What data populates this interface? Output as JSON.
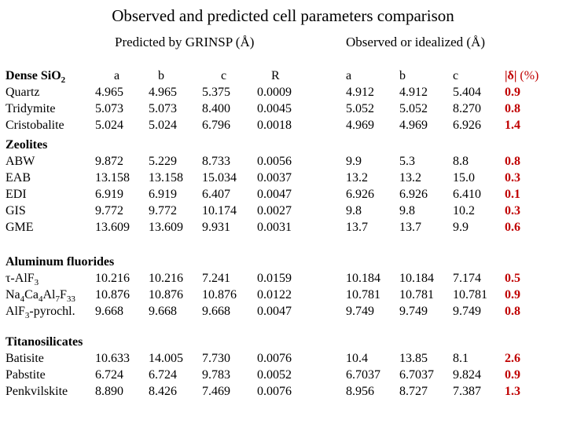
{
  "title": "Observed and predicted cell parameters comparison",
  "header_predicted": "Predicted by GRINSP (Å)",
  "header_observed": "Observed or idealized (Å)",
  "columns": {
    "a": "a",
    "b": "b",
    "c": "c",
    "R": "R",
    "oa": "a",
    "ob": "b",
    "oc": "c",
    "delta": "|δ| (%)"
  },
  "groups": [
    {
      "name": "Dense SiO2",
      "rows": [
        {
          "name": "Quartz",
          "a": "4.965",
          "b": "4.965",
          "c": "5.375",
          "R": "0.0009",
          "oa": "4.912",
          "ob": "4.912",
          "oc": "5.404",
          "d": "0.9"
        },
        {
          "name": "Tridymite",
          "a": "5.073",
          "b": "5.073",
          "c": "8.400",
          "R": "0.0045",
          "oa": "5.052",
          "ob": "5.052",
          "oc": "8.270",
          "d": "0.8"
        },
        {
          "name": "Cristobalite",
          "a": "5.024",
          "b": "5.024",
          "c": "6.796",
          "R": "0.0018",
          "oa": "4.969",
          "ob": "4.969",
          "oc": "6.926",
          "d": "1.4"
        }
      ]
    },
    {
      "name": "Zeolites",
      "rows": [
        {
          "name": "ABW",
          "a": "9.872",
          "b": "5.229",
          "c": "8.733",
          "R": "0.0056",
          "oa": "9.9",
          "ob": "5.3",
          "oc": "8.8",
          "d": "0.8"
        },
        {
          "name": "EAB",
          "a": "13.158",
          "b": "13.158",
          "c": "15.034",
          "R": "0.0037",
          "oa": "13.2",
          "ob": "13.2",
          "oc": "15.0",
          "d": "0.3"
        },
        {
          "name": "EDI",
          "a": "6.919",
          "b": "6.919",
          "c": "6.407",
          "R": "0.0047",
          "oa": "6.926",
          "ob": "6.926",
          "oc": "6.410",
          "d": "0.1"
        },
        {
          "name": "GIS",
          "a": "9.772",
          "b": "9.772",
          "c": "10.174",
          "R": "0.0027",
          "oa": "9.8",
          "ob": "9.8",
          "oc": "10.2",
          "d": "0.3"
        },
        {
          "name": "GME",
          "a": "13.609",
          "b": "13.609",
          "c": "9.931",
          "R": "0.0031",
          "oa": "13.7",
          "ob": "13.7",
          "oc": "9.9",
          "d": "0.6"
        }
      ]
    },
    {
      "name": "Aluminum fluorides",
      "rows": [
        {
          "name": "τ-AlF3",
          "a": "10.216",
          "b": "10.216",
          "c": "7.241",
          "R": "0.0159",
          "oa": "10.184",
          "ob": "10.184",
          "oc": "7.174",
          "d": "0.5"
        },
        {
          "name": "Na4Ca4Al7F33",
          "a": "10.876",
          "b": "10.876",
          "c": "10.876",
          "R": "0.0122",
          "oa": "10.781",
          "ob": "10.781",
          "oc": "10.781",
          "d": "0.9"
        },
        {
          "name": "AlF3-pyrochl.",
          "a": "9.668",
          "b": "9.668",
          "c": "9.668",
          "R": "0.0047",
          "oa": "9.749",
          "ob": "9.749",
          "oc": "9.749",
          "d": "0.8"
        }
      ]
    },
    {
      "name": "Titanosilicates",
      "rows": [
        {
          "name": "Batisite",
          "a": "10.633",
          "b": "14.005",
          "c": "7.730",
          "R": "0.0076",
          "oa": "10.4",
          "ob": "13.85",
          "oc": "8.1",
          "d": "2.6"
        },
        {
          "name": "Pabstite",
          "a": "6.724",
          "b": "6.724",
          "c": "9.783",
          "R": "0.0052",
          "oa": "6.7037",
          "ob": "6.7037",
          "oc": "9.824",
          "d": "0.9"
        },
        {
          "name": "Penkvilskite",
          "a": "8.890",
          "b": "8.426",
          "c": "7.469",
          "R": "0.0076",
          "oa": "8.956",
          "ob": "8.727",
          "oc": "7.387",
          "d": "1.3"
        }
      ]
    }
  ]
}
